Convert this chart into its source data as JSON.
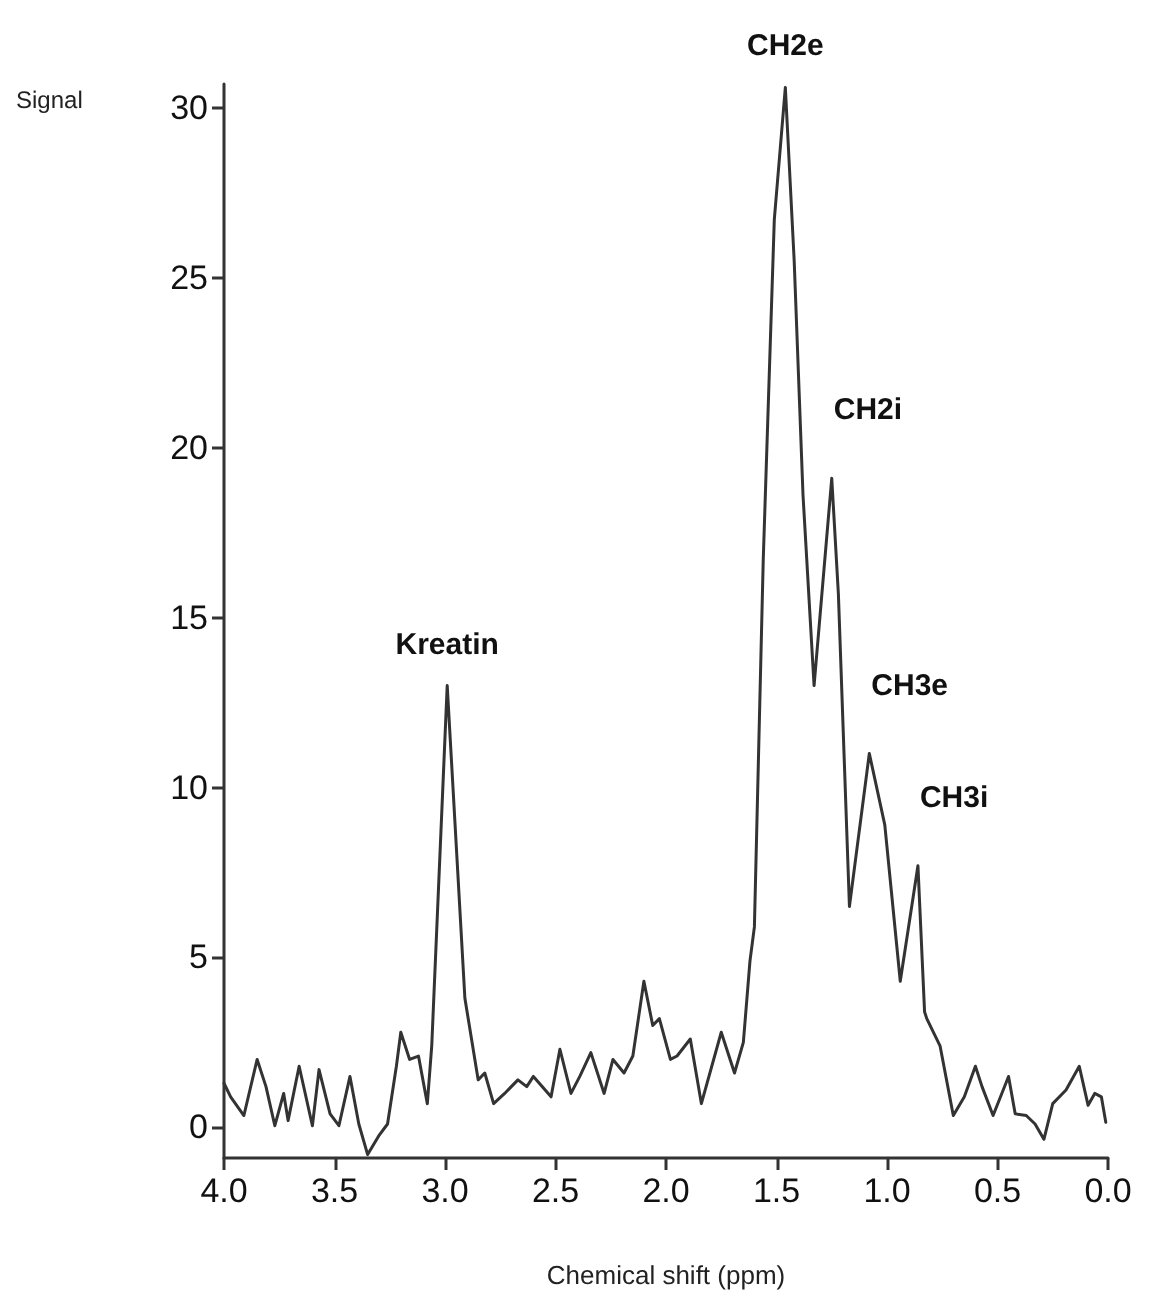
{
  "chart_data": {
    "type": "line",
    "xlabel": "Chemical shift (ppm)",
    "ylabel": "Signal",
    "xlim": [
      4.0,
      0.0
    ],
    "xticks": [
      {
        "value": 4,
        "label": "4.0"
      },
      {
        "value": 3.5,
        "label": "3.5"
      },
      {
        "value": 3,
        "label": "3.0"
      },
      {
        "value": 2.5,
        "label": "2.5"
      },
      {
        "value": 2,
        "label": "2.0"
      },
      {
        "value": 1.5,
        "label": "1.5"
      },
      {
        "value": 1,
        "label": "1.0"
      },
      {
        "value": 0.5,
        "label": "0.5"
      },
      {
        "value": 0,
        "label": "0.0"
      }
    ],
    "ylim": [
      -0.9,
      30.7
    ],
    "yticks": [
      0,
      5,
      10,
      15,
      20,
      25,
      30
    ],
    "grid": false,
    "marker": "none",
    "line_style": "solid",
    "series": [
      {
        "color": "#333333",
        "x": [
          4.0,
          3.97,
          3.91,
          3.85,
          3.81,
          3.77,
          3.73,
          3.71,
          3.66,
          3.6,
          3.57,
          3.52,
          3.48,
          3.43,
          3.39,
          3.35,
          3.3,
          3.26,
          3.22,
          3.2,
          3.16,
          3.12,
          3.08,
          3.06,
          2.99,
          2.91,
          2.85,
          2.82,
          2.78,
          2.73,
          2.67,
          2.63,
          2.6,
          2.52,
          2.48,
          2.43,
          2.39,
          2.34,
          2.28,
          2.24,
          2.19,
          2.15,
          2.1,
          2.06,
          2.03,
          1.98,
          1.95,
          1.89,
          1.84,
          1.75,
          1.69,
          1.65,
          1.62,
          1.6,
          1.56,
          1.51,
          1.46,
          1.42,
          1.38,
          1.33,
          1.25,
          1.22,
          1.17,
          1.08,
          1.01,
          0.94,
          0.86,
          0.83,
          0.82,
          0.76,
          0.7,
          0.65,
          0.6,
          0.57,
          0.52,
          0.45,
          0.42,
          0.37,
          0.33,
          0.29,
          0.25,
          0.19,
          0.13,
          0.09,
          0.06,
          0.03,
          0.01
        ],
        "values": [
          1.3,
          0.9,
          0.35,
          2.0,
          1.2,
          0.05,
          1.0,
          0.2,
          1.8,
          0.05,
          1.7,
          0.4,
          0.05,
          1.5,
          0.1,
          -0.8,
          -0.25,
          0.1,
          1.8,
          2.8,
          2.0,
          2.1,
          0.7,
          2.4,
          13.0,
          3.8,
          1.4,
          1.6,
          0.7,
          1.0,
          1.4,
          1.2,
          1.5,
          0.9,
          2.3,
          1.0,
          1.5,
          2.2,
          1.0,
          2.0,
          1.6,
          2.1,
          4.3,
          3.0,
          3.2,
          2.0,
          2.1,
          2.6,
          0.7,
          2.8,
          1.6,
          2.5,
          4.9,
          5.9,
          16.7,
          26.7,
          30.6,
          25.5,
          18.6,
          13.0,
          19.1,
          15.7,
          6.5,
          11.0,
          8.9,
          4.3,
          7.7,
          3.4,
          3.2,
          2.4,
          0.35,
          0.9,
          1.8,
          1.2,
          0.35,
          1.5,
          0.4,
          0.35,
          0.1,
          -0.35,
          0.7,
          1.1,
          1.8,
          0.65,
          1.0,
          0.9,
          0.15
        ]
      }
    ],
    "annotations": [
      {
        "text": "Kreatin",
        "x": 2.99,
        "y": 13.0
      },
      {
        "text": "CH2e",
        "x": 1.46,
        "y": 30.6
      },
      {
        "text": "CH2i",
        "x": 1.25,
        "y": 19.1
      },
      {
        "text": "CH3e",
        "x": 1.08,
        "y": 11.0
      },
      {
        "text": "CH3i",
        "x": 0.86,
        "y": 7.7
      }
    ]
  }
}
